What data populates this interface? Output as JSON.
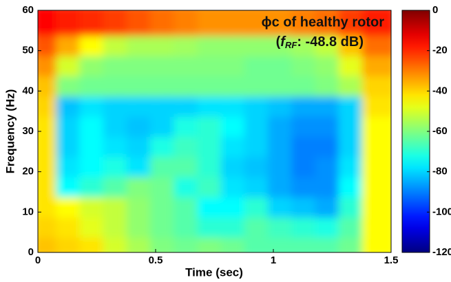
{
  "chart_data": {
    "type": "heatmap",
    "annotation_lines": [
      "ϕc of healthy rotor",
      [
        "(",
        "f",
        "RF",
        ": -48.8 dB)"
      ]
    ],
    "x_label": "Time (sec)",
    "y_label": "Frequency (Hz)",
    "xbins": [
      0,
      0.1,
      0.2,
      0.3,
      0.4,
      0.5,
      0.6,
      0.7,
      0.8,
      0.9,
      1,
      1.1,
      1.2,
      1.3,
      1.4,
      1.5
    ],
    "ybins": [
      0,
      5,
      10,
      15,
      20,
      25,
      30,
      35,
      40,
      45,
      50,
      55,
      60
    ],
    "z": [
      [
        -38,
        -40,
        -42,
        -50,
        -55,
        -60,
        -62,
        -60,
        -62,
        -65,
        -65,
        -65,
        -65,
        -62,
        -45
      ],
      [
        -40,
        -42,
        -48,
        -52,
        -58,
        -62,
        -65,
        -70,
        -70,
        -65,
        -68,
        -70,
        -72,
        -65,
        -45
      ],
      [
        -42,
        -45,
        -50,
        -52,
        -58,
        -62,
        -65,
        -75,
        -75,
        -70,
        -80,
        -82,
        -85,
        -70,
        -45
      ],
      [
        -42,
        -75,
        -70,
        -65,
        -60,
        -62,
        -72,
        -68,
        -78,
        -80,
        -85,
        -88,
        -88,
        -75,
        -45
      ],
      [
        -42,
        -78,
        -75,
        -72,
        -78,
        -65,
        -65,
        -70,
        -80,
        -82,
        -85,
        -90,
        -88,
        -78,
        -45
      ],
      [
        -42,
        -80,
        -75,
        -78,
        -80,
        -72,
        -68,
        -70,
        -78,
        -80,
        -85,
        -90,
        -90,
        -80,
        -45
      ],
      [
        -42,
        -80,
        -75,
        -80,
        -82,
        -80,
        -72,
        -70,
        -75,
        -80,
        -85,
        -88,
        -88,
        -80,
        -45
      ],
      [
        -40,
        -82,
        -78,
        -80,
        -80,
        -80,
        -80,
        -78,
        -78,
        -80,
        -82,
        -85,
        -85,
        -80,
        -42
      ],
      [
        -38,
        -60,
        -62,
        -62,
        -62,
        -62,
        -62,
        -62,
        -62,
        -62,
        -62,
        -62,
        -60,
        -55,
        -40
      ],
      [
        -32,
        -50,
        -58,
        -60,
        -60,
        -60,
        -60,
        -60,
        -60,
        -62,
        -62,
        -60,
        -58,
        -48,
        -35
      ],
      [
        -25,
        -35,
        -45,
        -52,
        -55,
        -55,
        -56,
        -58,
        -58,
        -58,
        -58,
        -56,
        -52,
        -38,
        -28
      ],
      [
        -15,
        -18,
        -20,
        -22,
        -25,
        -28,
        -30,
        -32,
        -32,
        -32,
        -32,
        -30,
        -28,
        -22,
        -18
      ]
    ],
    "xlim": [
      0,
      1.5
    ],
    "xticks": [
      0,
      0.5,
      1,
      1.5
    ],
    "ylim": [
      0,
      60
    ],
    "yticks": [
      0,
      10,
      20,
      30,
      40,
      50,
      60
    ],
    "colormap": "jet",
    "clim": [
      -120,
      0
    ],
    "cticks": [
      0,
      -20,
      -40,
      -60,
      -80,
      -100,
      -120
    ]
  }
}
